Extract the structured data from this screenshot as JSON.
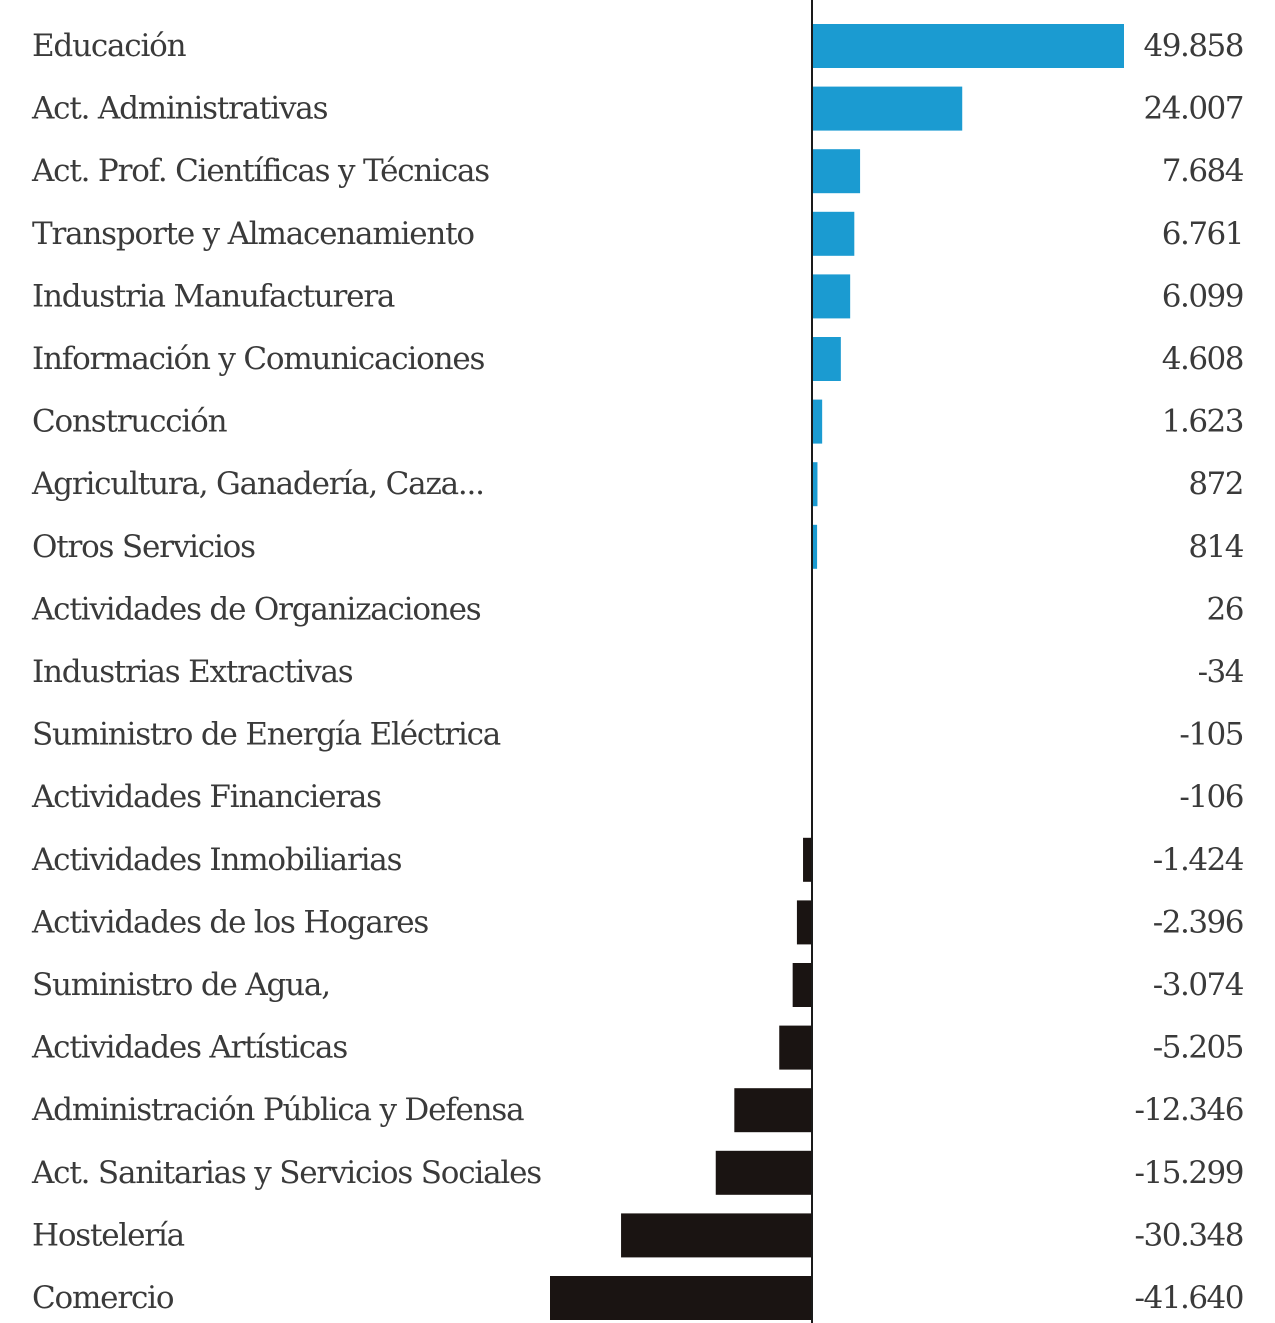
{
  "chart_data": {
    "type": "bar",
    "orientation": "horizontal",
    "categories": [
      "Educación",
      "Act. Administrativas",
      "Act. Prof. Científicas y Técnicas",
      "Transporte y Almacenamiento",
      "Industria Manufacturera",
      "Información y Comunicaciones",
      "Construcción",
      "Agricultura, Ganadería, Caza...",
      "Otros Servicios",
      "Actividades de Organizaciones",
      "Industrias Extractivas",
      "Suministro de Energía Eléctrica",
      "Actividades Financieras",
      "Actividades Inmobiliarias",
      "Actividades de los Hogares",
      "Suministro de Agua,",
      "Actividades Artísticas",
      "Administración Pública y Defensa",
      "Act. Sanitarias y Servicios Sociales",
      "Hostelería",
      "Comercio"
    ],
    "values": [
      49858,
      24007,
      7684,
      6761,
      6099,
      4608,
      1623,
      872,
      814,
      26,
      -34,
      -105,
      -106,
      -1424,
      -2396,
      -3074,
      -5205,
      -12346,
      -15299,
      -30348,
      -41640
    ],
    "value_labels": [
      "49.858",
      "24.007",
      "7.684",
      "6.761",
      "6.099",
      "4.608",
      "1.623",
      "872",
      "814",
      "26",
      "-34",
      "-105",
      "-106",
      "-1.424",
      "-2.396",
      "-3.074",
      "-5.205",
      "-12.346",
      "-15.299",
      "-30.348",
      "-41.640"
    ],
    "xlim": [
      -41640,
      49858
    ],
    "grid": false,
    "legend": "none",
    "colors": {
      "positive": "#1b9bd1",
      "negative": "#1a1412",
      "axis": "#1a1a1a",
      "text": "#3a3a3a"
    }
  }
}
